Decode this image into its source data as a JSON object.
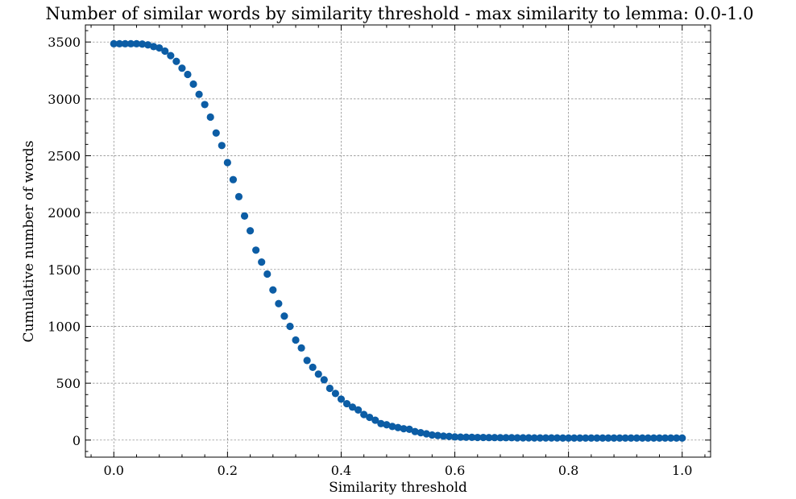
{
  "chart_data": {
    "type": "scatter",
    "title": "Number of similar words by similarity threshold - max similarity to lemma: 0.0-1.0",
    "xlabel": "Similarity threshold",
    "ylabel": "Cumulative number of words",
    "xlim": [
      -0.05,
      1.05
    ],
    "ylim": [
      -150,
      3650
    ],
    "xticks": [
      0.0,
      0.2,
      0.4,
      0.6,
      0.8,
      1.0
    ],
    "xtick_labels": [
      "0.0",
      "0.2",
      "0.4",
      "0.6",
      "0.8",
      "1.0"
    ],
    "yticks": [
      0,
      500,
      1000,
      1500,
      2000,
      2500,
      3000,
      3500
    ],
    "ytick_labels": [
      "0",
      "500",
      "1000",
      "1500",
      "2000",
      "2500",
      "3000",
      "3500"
    ],
    "grid": true,
    "color": "#0C5DA5",
    "x": [
      0.0,
      0.01,
      0.02,
      0.03,
      0.04,
      0.05,
      0.06,
      0.07,
      0.08,
      0.09,
      0.1,
      0.11,
      0.12,
      0.13,
      0.14,
      0.15,
      0.16,
      0.17,
      0.18,
      0.19,
      0.2,
      0.21,
      0.22,
      0.23,
      0.24,
      0.25,
      0.26,
      0.27,
      0.28,
      0.29,
      0.3,
      0.31,
      0.32,
      0.33,
      0.34,
      0.35,
      0.36,
      0.37,
      0.38,
      0.39,
      0.4,
      0.41,
      0.42,
      0.43,
      0.44,
      0.45,
      0.46,
      0.47,
      0.48,
      0.49,
      0.5,
      0.51,
      0.52,
      0.53,
      0.54,
      0.55,
      0.56,
      0.57,
      0.58,
      0.59,
      0.6,
      0.61,
      0.62,
      0.63,
      0.64,
      0.65,
      0.66,
      0.67,
      0.68,
      0.69,
      0.7,
      0.71,
      0.72,
      0.73,
      0.74,
      0.75,
      0.76,
      0.77,
      0.78,
      0.79,
      0.8,
      0.81,
      0.82,
      0.83,
      0.84,
      0.85,
      0.86,
      0.87,
      0.88,
      0.89,
      0.9,
      0.91,
      0.92,
      0.93,
      0.94,
      0.95,
      0.96,
      0.97,
      0.98,
      0.99,
      1.0
    ],
    "y": [
      3485,
      3485,
      3485,
      3485,
      3485,
      3482,
      3475,
      3460,
      3448,
      3420,
      3380,
      3330,
      3270,
      3215,
      3130,
      3040,
      2950,
      2840,
      2700,
      2590,
      2440,
      2290,
      2140,
      1970,
      1840,
      1670,
      1565,
      1460,
      1320,
      1200,
      1090,
      1000,
      880,
      810,
      700,
      640,
      580,
      530,
      455,
      410,
      360,
      320,
      290,
      265,
      225,
      200,
      175,
      145,
      135,
      120,
      110,
      100,
      95,
      75,
      65,
      55,
      45,
      40,
      35,
      32,
      28,
      26,
      25,
      24,
      23,
      23,
      22,
      22,
      21,
      21,
      21,
      20,
      20,
      20,
      19,
      19,
      19,
      19,
      19,
      18,
      18,
      18,
      18,
      18,
      18,
      18,
      18,
      18,
      18,
      18,
      18,
      18,
      18,
      18,
      18,
      18,
      18,
      18,
      18,
      18,
      18
    ]
  }
}
